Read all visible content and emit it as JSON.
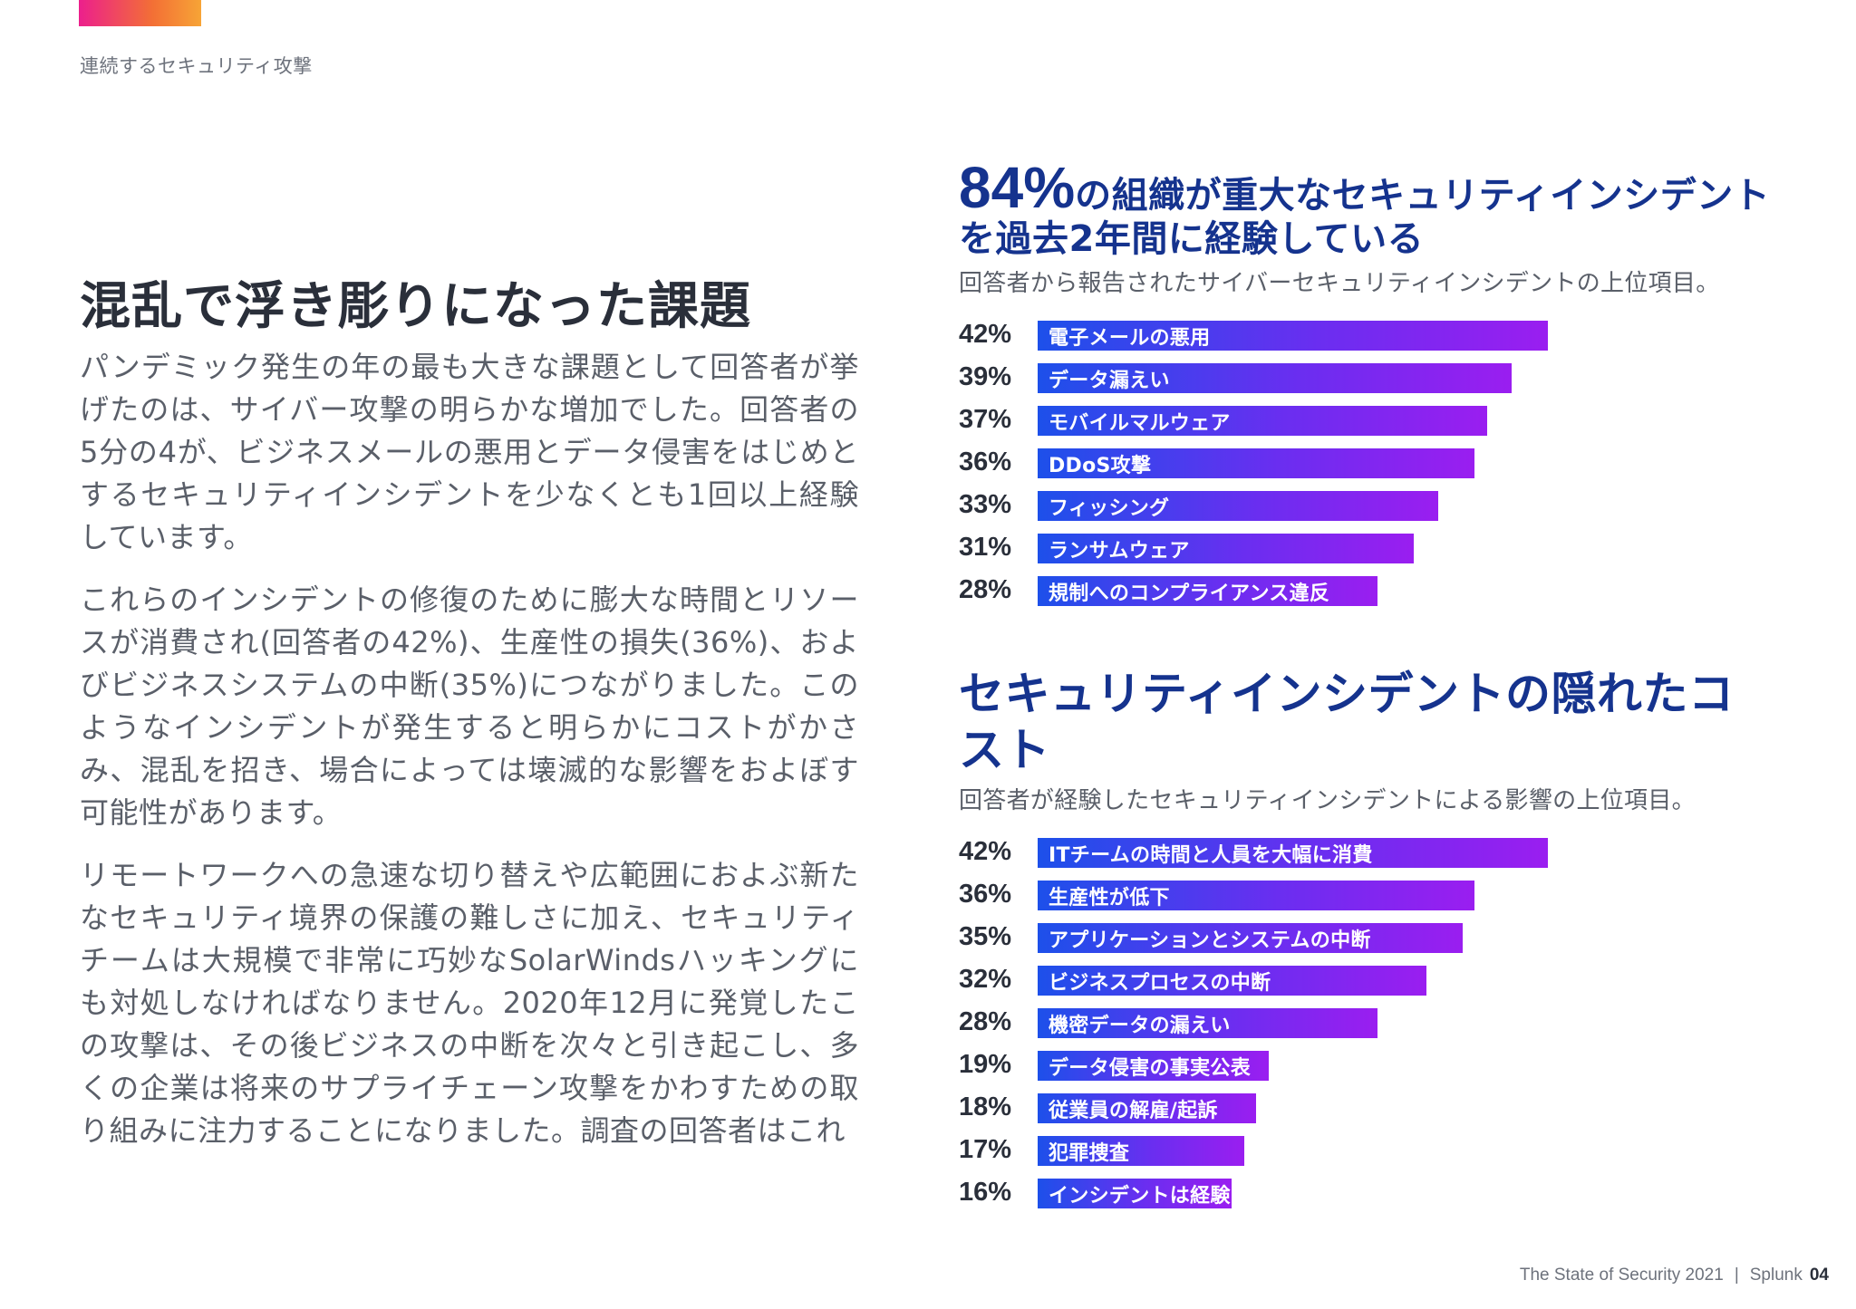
{
  "section_label": "連続するセキュリティ攻撃",
  "heading": "混乱で浮き彫りになった課題",
  "paragraphs": [
    "パンデミック発生の年の最も大きな課題として回答者が挙げたのは、サイバー攻撃の明らかな増加でした。回答者の5分の4が、ビジネスメールの悪用とデータ侵害をはじめとするセキュリティインシデントを少なくとも1回以上経験しています。",
    "これらのインシデントの修復のために膨大な時間とリソースが消費され(回答者の42%)、生産性の損失(36%)、およびビジネスシステムの中断(35%)につながりました。このようなインシデントが発生すると明らかにコストがかさみ、混乱を招き、場合によっては壊滅的な影響をおよぼす可能性があります。",
    "リモートワークへの急速な切り替えや広範囲におよぶ新たなセキュリティ境界の保護の難しさに加え、セキュリティチームは大規模で非常に巧妙なSolarWindsハッキングにも対処しなければなりません。2020年12月に発覚したこの攻撃は、その後ビジネスの中断を次々と引き起こし、多くの企業は将来のサプライチェーン攻撃をかわすための取り組みに注力することになりました。調査の回答者はこれ"
  ],
  "chart1": {
    "title_big": "84%",
    "title_rest": "の組織が重大なセキュリティインシデントを過去2年間に経験している",
    "subtitle": "回答者から報告されたサイバーセキュリティインシデントの上位項目。"
  },
  "chart2": {
    "title": "セキュリティインシデントの隠れたコスト",
    "subtitle": "回答者が経験したセキュリティインシデントによる影響の上位項目。"
  },
  "chart_data": [
    {
      "type": "bar",
      "orientation": "horizontal",
      "title": "84%の組織が重大なセキュリティインシデントを過去2年間に経験している",
      "subtitle": "回答者から報告されたサイバーセキュリティインシデントの上位項目。",
      "categories": [
        "電子メールの悪用",
        "データ漏えい",
        "モバイルマルウェア",
        "DDoS攻撃",
        "フィッシング",
        "ランサムウェア",
        "規制へのコンプライアンス違反"
      ],
      "values": [
        42,
        39,
        37,
        36,
        33,
        31,
        28
      ],
      "labels": [
        "42%",
        "39%",
        "37%",
        "36%",
        "33%",
        "31%",
        "28%"
      ],
      "unit": "%",
      "colors": [
        "#1d50ea",
        "#9a1ef0"
      ]
    },
    {
      "type": "bar",
      "orientation": "horizontal",
      "title": "セキュリティインシデントの隠れたコスト",
      "subtitle": "回答者が経験したセキュリティインシデントによる影響の上位項目。",
      "categories": [
        "ITチームの時間と人員を大幅に消費",
        "生産性が低下",
        "アプリケーションとシステムの中断",
        "ビジネスプロセスの中断",
        "機密データの漏えい",
        "データ侵害の事実公表",
        "従業員の解雇/起訴",
        "犯罪捜査",
        "インシデントは経験したが影響は軽微"
      ],
      "values": [
        42,
        36,
        35,
        32,
        28,
        19,
        18,
        17,
        16
      ],
      "labels": [
        "42%",
        "36%",
        "35%",
        "32%",
        "28%",
        "19%",
        "18%",
        "17%",
        "16%"
      ],
      "unit": "%",
      "colors": [
        "#1d50ea",
        "#9a1ef0"
      ]
    }
  ],
  "footer": {
    "title": "The State of Security 2021",
    "separator": "|",
    "brand": "Splunk",
    "page": "04"
  },
  "colors": {
    "accent_start": "#ec1f8d",
    "accent_end": "#f7a436",
    "title_blue": "#15338e",
    "bar_start": "#1d50ea",
    "bar_end": "#9a1ef0"
  }
}
